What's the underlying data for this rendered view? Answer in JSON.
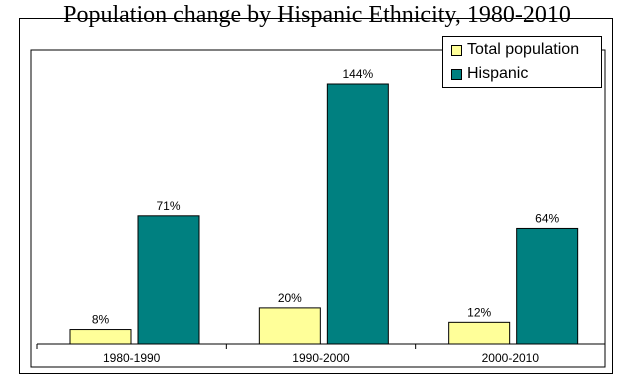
{
  "chart_data": {
    "type": "bar",
    "title": "Population change by Hispanic Ethnicity, 1980-2010",
    "categories": [
      "1980-1990",
      "1990-2000",
      "2000-2010"
    ],
    "series": [
      {
        "name": "Total population",
        "values": [
          8,
          20,
          12
        ],
        "labels": [
          "8%",
          "20%",
          "12%"
        ],
        "color": "#ffff99"
      },
      {
        "name": "Hispanic",
        "values": [
          71,
          144,
          64
        ],
        "labels": [
          "71%",
          "144%",
          "64%"
        ],
        "color": "#008080"
      }
    ],
    "xlabel": "",
    "ylabel": "",
    "ylim": [
      0,
      160
    ],
    "grid": false,
    "legend_position": "top-right"
  }
}
